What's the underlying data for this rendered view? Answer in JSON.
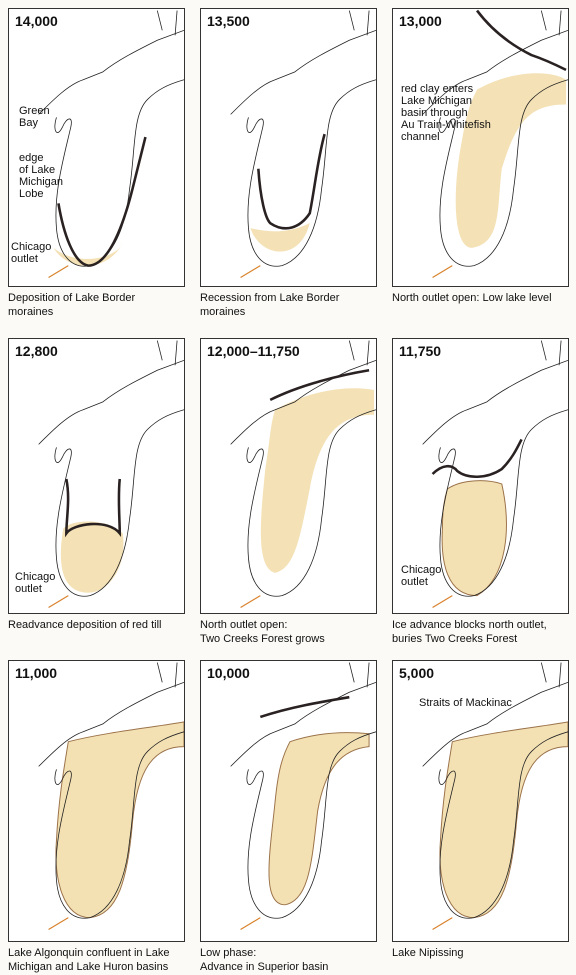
{
  "panels": [
    {
      "year": "14,000",
      "labels": [
        [
          "Green",
          "Bay"
        ],
        [
          "edge",
          "of Lake",
          "Michigan",
          "Lobe"
        ],
        [
          "Chicago",
          "outlet"
        ]
      ],
      "caption": [
        "Deposition of Lake Border",
        "moraines"
      ]
    },
    {
      "year": "13,500",
      "labels": [],
      "caption": [
        "Recession from Lake Border",
        "moraines"
      ]
    },
    {
      "year": "13,000",
      "labels": [
        [
          "red clay enters",
          "Lake Michigan",
          "basin through",
          "Au Train-Whitefish",
          "channel"
        ]
      ],
      "caption": [
        "North outlet open: Low lake level"
      ]
    },
    {
      "year": "12,800",
      "labels": [
        [
          "Chicago",
          "outlet"
        ]
      ],
      "caption": [
        "Readvance deposition of red till"
      ]
    },
    {
      "year": "12,000–11,750",
      "labels": [],
      "caption": [
        "North outlet open:",
        "Two Creeks Forest grows"
      ]
    },
    {
      "year": "11,750",
      "labels": [
        [
          "Chicago",
          "outlet"
        ]
      ],
      "caption": [
        "Ice advance blocks north outlet,",
        "buries Two Creeks Forest"
      ]
    },
    {
      "year": "11,000",
      "labels": [],
      "caption": [
        "Lake Algonquin confluent in Lake",
        "Michigan and Lake Huron basins"
      ]
    },
    {
      "year": "10,000",
      "labels": [],
      "caption": [
        "Low phase:",
        "Advance in Superior basin"
      ]
    },
    {
      "year": "5,000",
      "labels": [
        [
          "Straits of Mackinac"
        ]
      ],
      "caption": [
        "Lake Nipissing"
      ]
    }
  ]
}
